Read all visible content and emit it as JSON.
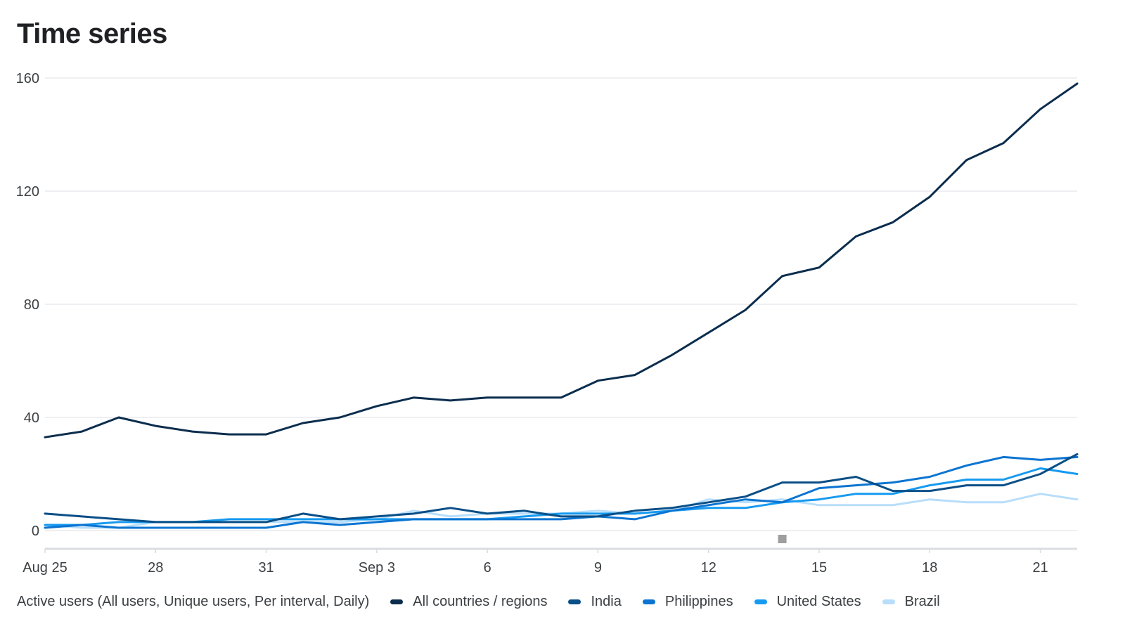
{
  "title": "Time series",
  "legend": {
    "caption": "Active users (All users, Unique users, Per interval, Daily)"
  },
  "colors": {
    "grid": "#e8eaed",
    "axis_text": "#3c4043",
    "baseline": "#dadce0",
    "marker": "#9e9e9e"
  },
  "chart_data": {
    "type": "line",
    "xlabel": "",
    "ylabel": "",
    "ylim": [
      0,
      160
    ],
    "y_ticks": [
      0,
      40,
      80,
      120,
      160
    ],
    "x": [
      "Aug 25",
      "Aug 26",
      "Aug 27",
      "Aug 28",
      "Aug 29",
      "Aug 30",
      "Aug 31",
      "Sep 1",
      "Sep 2",
      "Sep 3",
      "Sep 4",
      "Sep 5",
      "Sep 6",
      "Sep 7",
      "Sep 8",
      "Sep 9",
      "Sep 10",
      "Sep 11",
      "Sep 12",
      "Sep 13",
      "Sep 14",
      "Sep 15",
      "Sep 16",
      "Sep 17",
      "Sep 18",
      "Sep 19",
      "Sep 20",
      "Sep 21",
      "Sep 22"
    ],
    "x_tick_labels": [
      {
        "index": 0,
        "label": "Aug 25"
      },
      {
        "index": 3,
        "label": "28"
      },
      {
        "index": 6,
        "label": "31"
      },
      {
        "index": 9,
        "label": "Sep 3"
      },
      {
        "index": 12,
        "label": "6"
      },
      {
        "index": 15,
        "label": "9"
      },
      {
        "index": 18,
        "label": "12"
      },
      {
        "index": 21,
        "label": "15"
      },
      {
        "index": 24,
        "label": "18"
      },
      {
        "index": 27,
        "label": "21"
      }
    ],
    "grid": true,
    "legend_position": "bottom",
    "marker_index": 20,
    "series": [
      {
        "name": "All countries / regions",
        "color": "#0b2d4d",
        "values": [
          33,
          35,
          40,
          37,
          35,
          34,
          34,
          38,
          40,
          44,
          47,
          46,
          47,
          47,
          47,
          53,
          55,
          62,
          70,
          78,
          90,
          93,
          104,
          109,
          118,
          131,
          137,
          149,
          158
        ]
      },
      {
        "name": "India",
        "color": "#0a4f87",
        "values": [
          6,
          5,
          4,
          3,
          3,
          3,
          3,
          6,
          4,
          5,
          6,
          8,
          6,
          7,
          5,
          5,
          7,
          8,
          10,
          12,
          17,
          17,
          19,
          14,
          14,
          16,
          16,
          20,
          27
        ]
      },
      {
        "name": "Philippines",
        "color": "#0b74d1",
        "values": [
          1,
          2,
          1,
          1,
          1,
          1,
          1,
          3,
          2,
          3,
          4,
          4,
          4,
          4,
          4,
          5,
          4,
          7,
          9,
          11,
          10,
          15,
          16,
          17,
          19,
          23,
          26,
          25,
          26
        ]
      },
      {
        "name": "United States",
        "color": "#169af0",
        "values": [
          2,
          2,
          3,
          3,
          3,
          4,
          4,
          4,
          4,
          4,
          4,
          4,
          4,
          5,
          6,
          6,
          6,
          7,
          8,
          8,
          10,
          11,
          13,
          13,
          16,
          18,
          18,
          22,
          20
        ]
      },
      {
        "name": "Brazil",
        "color": "#b7defb",
        "values": [
          2,
          1,
          1,
          3,
          3,
          3,
          3,
          3,
          3,
          4,
          7,
          5,
          6,
          6,
          6,
          7,
          6,
          7,
          11,
          10,
          11,
          9,
          9,
          9,
          11,
          10,
          10,
          13,
          11
        ]
      }
    ]
  }
}
